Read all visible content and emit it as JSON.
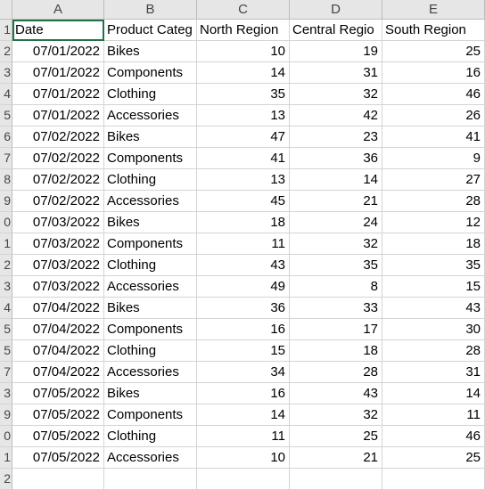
{
  "columns": [
    "A",
    "B",
    "C",
    "D",
    "E"
  ],
  "header_row": {
    "row_number": "1",
    "cells": [
      "Date",
      "Product Categ",
      "North Region",
      "Central Regio",
      "South Region"
    ]
  },
  "rows": [
    {
      "row_number": "2",
      "date": "07/01/2022",
      "category": "Bikes",
      "north": "10",
      "central": "19",
      "south": "25"
    },
    {
      "row_number": "3",
      "date": "07/01/2022",
      "category": "Components",
      "north": "14",
      "central": "31",
      "south": "16"
    },
    {
      "row_number": "4",
      "date": "07/01/2022",
      "category": "Clothing",
      "north": "35",
      "central": "32",
      "south": "46"
    },
    {
      "row_number": "5",
      "date": "07/01/2022",
      "category": "Accessories",
      "north": "13",
      "central": "42",
      "south": "26"
    },
    {
      "row_number": "6",
      "date": "07/02/2022",
      "category": "Bikes",
      "north": "47",
      "central": "23",
      "south": "41"
    },
    {
      "row_number": "7",
      "date": "07/02/2022",
      "category": "Components",
      "north": "41",
      "central": "36",
      "south": "9"
    },
    {
      "row_number": "8",
      "date": "07/02/2022",
      "category": "Clothing",
      "north": "13",
      "central": "14",
      "south": "27"
    },
    {
      "row_number": "9",
      "date": "07/02/2022",
      "category": "Accessories",
      "north": "45",
      "central": "21",
      "south": "28"
    },
    {
      "row_number": "0",
      "date": "07/03/2022",
      "category": "Bikes",
      "north": "18",
      "central": "24",
      "south": "12"
    },
    {
      "row_number": "1",
      "date": "07/03/2022",
      "category": "Components",
      "north": "11",
      "central": "32",
      "south": "18"
    },
    {
      "row_number": "2",
      "date": "07/03/2022",
      "category": "Clothing",
      "north": "43",
      "central": "35",
      "south": "35"
    },
    {
      "row_number": "3",
      "date": "07/03/2022",
      "category": "Accessories",
      "north": "49",
      "central": "8",
      "south": "15"
    },
    {
      "row_number": "4",
      "date": "07/04/2022",
      "category": "Bikes",
      "north": "36",
      "central": "33",
      "south": "43"
    },
    {
      "row_number": "5",
      "date": "07/04/2022",
      "category": "Components",
      "north": "16",
      "central": "17",
      "south": "30"
    },
    {
      "row_number": "5",
      "date": "07/04/2022",
      "category": "Clothing",
      "north": "15",
      "central": "18",
      "south": "28"
    },
    {
      "row_number": "7",
      "date": "07/04/2022",
      "category": "Accessories",
      "north": "34",
      "central": "28",
      "south": "31"
    },
    {
      "row_number": "3",
      "date": "07/05/2022",
      "category": "Bikes",
      "north": "16",
      "central": "43",
      "south": "14"
    },
    {
      "row_number": "9",
      "date": "07/05/2022",
      "category": "Components",
      "north": "14",
      "central": "32",
      "south": "11"
    },
    {
      "row_number": "0",
      "date": "07/05/2022",
      "category": "Clothing",
      "north": "11",
      "central": "25",
      "south": "46"
    },
    {
      "row_number": "1",
      "date": "07/05/2022",
      "category": "Accessories",
      "north": "10",
      "central": "21",
      "south": "25"
    }
  ],
  "trailing_row_number": "2"
}
